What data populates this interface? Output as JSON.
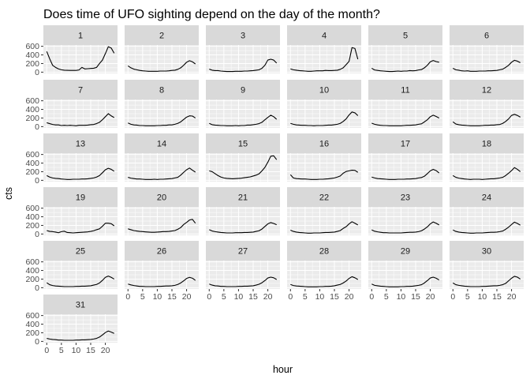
{
  "chart_data": {
    "type": "line",
    "title": "Does time of UFO sighting depend on the day of the month?",
    "xlabel": "hour",
    "ylabel": "cts",
    "facet_variable": "day of month",
    "x": [
      0,
      1,
      2,
      3,
      4,
      5,
      6,
      7,
      8,
      9,
      10,
      11,
      12,
      13,
      14,
      15,
      16,
      17,
      18,
      19,
      20,
      21,
      22,
      23
    ],
    "xticks": [
      0,
      5,
      10,
      15,
      20
    ],
    "yticks": [
      0,
      200,
      400,
      600
    ],
    "xlim": [
      -1.15,
      24.15
    ],
    "ylim": [
      -30,
      630
    ],
    "colors": {
      "panel_bg": "#ebebeb",
      "strip_bg": "#d9d9d9",
      "grid": "#ffffff",
      "line": "#000000"
    },
    "panels": [
      {
        "label": "1",
        "values": [
          480,
          310,
          160,
          110,
          75,
          55,
          45,
          42,
          40,
          40,
          40,
          50,
          110,
          75,
          80,
          85,
          90,
          110,
          200,
          280,
          430,
          590,
          560,
          440
        ]
      },
      {
        "label": "2",
        "values": [
          145,
          100,
          70,
          55,
          40,
          30,
          25,
          20,
          20,
          20,
          20,
          25,
          25,
          25,
          30,
          40,
          45,
          65,
          100,
          160,
          230,
          265,
          240,
          190
        ]
      },
      {
        "label": "3",
        "values": [
          70,
          45,
          35,
          35,
          25,
          20,
          15,
          15,
          15,
          20,
          20,
          20,
          25,
          25,
          30,
          35,
          45,
          55,
          90,
          160,
          280,
          300,
          280,
          210
        ]
      },
      {
        "label": "4",
        "values": [
          75,
          55,
          45,
          35,
          30,
          25,
          20,
          20,
          25,
          30,
          30,
          30,
          40,
          35,
          35,
          40,
          45,
          65,
          100,
          175,
          250,
          570,
          550,
          300
        ]
      },
      {
        "label": "5",
        "values": [
          90,
          50,
          40,
          30,
          25,
          20,
          15,
          15,
          20,
          25,
          20,
          25,
          25,
          35,
          30,
          35,
          50,
          60,
          100,
          160,
          240,
          270,
          245,
          230
        ]
      },
      {
        "label": "6",
        "values": [
          90,
          55,
          45,
          30,
          25,
          30,
          20,
          20,
          20,
          25,
          25,
          25,
          30,
          30,
          35,
          40,
          55,
          70,
          110,
          160,
          230,
          275,
          255,
          220
        ]
      },
      {
        "label": "7",
        "values": [
          90,
          70,
          50,
          40,
          40,
          25,
          30,
          25,
          30,
          25,
          20,
          30,
          30,
          30,
          35,
          45,
          50,
          70,
          100,
          160,
          230,
          300,
          250,
          210
        ]
      },
      {
        "label": "8",
        "values": [
          85,
          55,
          40,
          35,
          25,
          25,
          20,
          20,
          20,
          20,
          25,
          25,
          30,
          30,
          40,
          40,
          55,
          75,
          110,
          165,
          220,
          250,
          245,
          200
        ]
      },
      {
        "label": "9",
        "values": [
          75,
          45,
          35,
          30,
          25,
          25,
          20,
          20,
          20,
          25,
          20,
          25,
          25,
          35,
          35,
          45,
          55,
          70,
          100,
          160,
          215,
          265,
          230,
          170
        ]
      },
      {
        "label": "10",
        "values": [
          75,
          55,
          40,
          35,
          30,
          30,
          25,
          25,
          20,
          25,
          25,
          25,
          30,
          35,
          35,
          45,
          55,
          75,
          120,
          180,
          270,
          340,
          320,
          255
        ]
      },
      {
        "label": "11",
        "values": [
          80,
          55,
          40,
          30,
          25,
          25,
          20,
          20,
          20,
          20,
          20,
          25,
          30,
          30,
          35,
          40,
          55,
          65,
          110,
          160,
          230,
          265,
          235,
          200
        ]
      },
      {
        "label": "12",
        "values": [
          110,
          60,
          45,
          35,
          30,
          25,
          20,
          20,
          20,
          20,
          25,
          30,
          30,
          35,
          35,
          45,
          50,
          75,
          120,
          180,
          260,
          285,
          260,
          220
        ]
      },
      {
        "label": "13",
        "values": [
          110,
          75,
          55,
          45,
          40,
          30,
          25,
          20,
          20,
          25,
          25,
          25,
          30,
          30,
          35,
          45,
          55,
          75,
          110,
          175,
          245,
          280,
          255,
          210
        ]
      },
      {
        "label": "14",
        "values": [
          70,
          50,
          40,
          30,
          30,
          25,
          20,
          20,
          20,
          25,
          20,
          25,
          25,
          30,
          35,
          40,
          55,
          70,
          120,
          185,
          245,
          285,
          235,
          190
        ]
      },
      {
        "label": "15",
        "values": [
          220,
          200,
          155,
          110,
          75,
          55,
          45,
          40,
          35,
          40,
          45,
          50,
          60,
          70,
          80,
          100,
          120,
          150,
          220,
          300,
          420,
          560,
          570,
          480
        ]
      },
      {
        "label": "16",
        "values": [
          130,
          55,
          40,
          35,
          30,
          30,
          25,
          20,
          20,
          20,
          25,
          25,
          30,
          35,
          45,
          55,
          75,
          100,
          165,
          205,
          220,
          235,
          230,
          185
        ]
      },
      {
        "label": "17",
        "values": [
          75,
          55,
          40,
          35,
          30,
          25,
          20,
          20,
          20,
          25,
          25,
          25,
          30,
          30,
          35,
          40,
          55,
          65,
          95,
          155,
          220,
          255,
          225,
          170
        ]
      },
      {
        "label": "18",
        "values": [
          110,
          70,
          50,
          40,
          30,
          25,
          20,
          25,
          25,
          25,
          20,
          25,
          30,
          35,
          35,
          45,
          55,
          70,
          110,
          165,
          225,
          295,
          255,
          200
        ]
      },
      {
        "label": "19",
        "values": [
          80,
          60,
          55,
          45,
          30,
          55,
          65,
          35,
          30,
          25,
          30,
          35,
          40,
          45,
          50,
          60,
          75,
          100,
          120,
          180,
          250,
          250,
          240,
          190
        ]
      },
      {
        "label": "20",
        "values": [
          120,
          100,
          80,
          70,
          60,
          55,
          50,
          45,
          40,
          40,
          45,
          50,
          55,
          55,
          60,
          70,
          80,
          110,
          150,
          220,
          270,
          325,
          340,
          250
        ]
      },
      {
        "label": "21",
        "values": [
          100,
          70,
          55,
          45,
          35,
          30,
          25,
          25,
          25,
          30,
          30,
          30,
          35,
          35,
          40,
          45,
          60,
          75,
          115,
          175,
          235,
          265,
          245,
          215
        ]
      },
      {
        "label": "22",
        "values": [
          90,
          60,
          45,
          35,
          30,
          25,
          20,
          20,
          25,
          25,
          25,
          30,
          35,
          35,
          40,
          45,
          60,
          80,
          130,
          170,
          235,
          285,
          250,
          210
        ]
      },
      {
        "label": "23",
        "values": [
          95,
          65,
          50,
          40,
          30,
          30,
          25,
          25,
          25,
          25,
          25,
          30,
          35,
          40,
          40,
          45,
          55,
          75,
          115,
          165,
          235,
          280,
          250,
          210
        ]
      },
      {
        "label": "24",
        "values": [
          95,
          60,
          45,
          35,
          30,
          25,
          20,
          20,
          25,
          25,
          25,
          30,
          35,
          40,
          40,
          45,
          55,
          70,
          110,
          160,
          220,
          275,
          245,
          205
        ]
      },
      {
        "label": "25",
        "values": [
          115,
          70,
          50,
          40,
          35,
          30,
          25,
          25,
          25,
          25,
          30,
          30,
          35,
          35,
          40,
          45,
          60,
          75,
          110,
          170,
          240,
          270,
          240,
          200
        ]
      },
      {
        "label": "26",
        "values": [
          85,
          65,
          50,
          40,
          30,
          30,
          25,
          25,
          25,
          25,
          30,
          30,
          35,
          40,
          40,
          45,
          55,
          75,
          110,
          160,
          215,
          240,
          220,
          170
        ]
      },
      {
        "label": "27",
        "values": [
          85,
          60,
          45,
          40,
          30,
          30,
          25,
          25,
          25,
          25,
          30,
          30,
          35,
          35,
          40,
          45,
          60,
          80,
          115,
          165,
          225,
          245,
          230,
          190
        ]
      },
      {
        "label": "28",
        "values": [
          75,
          50,
          40,
          35,
          30,
          25,
          20,
          20,
          20,
          20,
          25,
          25,
          30,
          30,
          35,
          45,
          60,
          75,
          110,
          155,
          215,
          255,
          230,
          190
        ]
      },
      {
        "label": "29",
        "values": [
          85,
          55,
          45,
          35,
          30,
          25,
          20,
          20,
          20,
          20,
          25,
          25,
          30,
          30,
          35,
          45,
          55,
          70,
          110,
          165,
          225,
          245,
          220,
          180
        ]
      },
      {
        "label": "30",
        "values": [
          110,
          70,
          55,
          45,
          35,
          30,
          25,
          25,
          25,
          25,
          30,
          30,
          35,
          40,
          45,
          45,
          55,
          70,
          100,
          160,
          220,
          265,
          245,
          200
        ]
      },
      {
        "label": "31",
        "values": [
          70,
          55,
          45,
          40,
          30,
          30,
          25,
          25,
          25,
          25,
          30,
          30,
          35,
          35,
          40,
          45,
          55,
          70,
          100,
          150,
          205,
          240,
          215,
          185
        ]
      }
    ]
  }
}
